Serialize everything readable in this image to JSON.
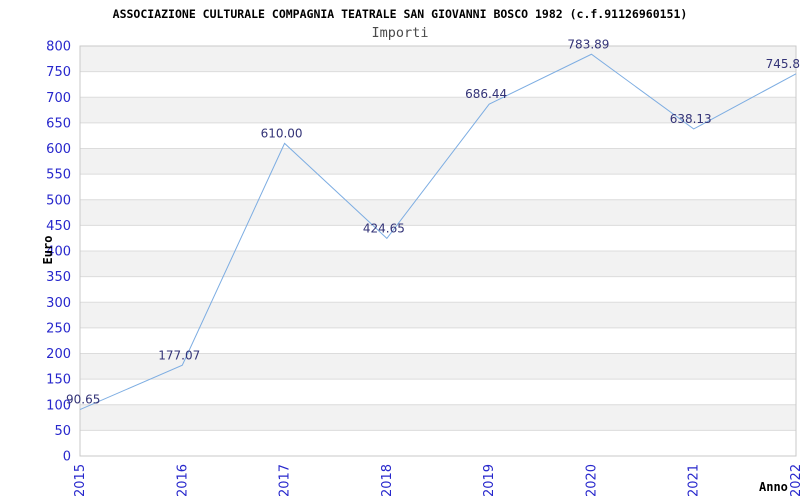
{
  "header": {
    "title": "ASSOCIAZIONE CULTURALE COMPAGNIA TEATRALE SAN GIOVANNI BOSCO 1982 (c.f.91126960151)"
  },
  "chart_data": {
    "type": "line",
    "title": "Importi",
    "xlabel": "Anno",
    "ylabel": "Euro",
    "x": [
      "2015",
      "2016",
      "2017",
      "2018",
      "2019",
      "2020",
      "2021",
      "2022"
    ],
    "values": [
      90.65,
      177.07,
      610.0,
      424.65,
      686.44,
      783.89,
      638.13,
      745.8
    ],
    "point_labels": [
      "90.65",
      "177.07",
      "610.00",
      "424.65",
      "686.44",
      "783.89",
      "638.13",
      "745.8"
    ],
    "ylim": [
      0,
      800
    ],
    "ytick_step": 50,
    "grid": true,
    "legend": "none",
    "x_tick_rotation": -90,
    "band_fill_alternating": true,
    "colors": {
      "line": "#7dade2",
      "tick_label": "#2727cc",
      "data_label": "#333377",
      "band_gray": "#f2f2f2",
      "band_white": "#ffffff",
      "gridline": "#dcdcdc",
      "border": "#c9c9c9",
      "title": "#000000",
      "subtitle": "#4b4b4b",
      "axis_title": "#000000"
    }
  }
}
